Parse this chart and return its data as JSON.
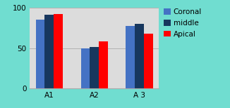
{
  "categories": [
    "A1",
    "A2",
    "A 3"
  ],
  "series": {
    "Coronal": [
      85,
      50,
      77
    ],
    "middle": [
      91,
      51,
      80
    ],
    "Apical": [
      92,
      58,
      68
    ]
  },
  "colors": {
    "Coronal": "#4472c4",
    "middle": "#17375e",
    "Apical": "#ff0000"
  },
  "ylim": [
    0,
    100
  ],
  "yticks": [
    0,
    50,
    100
  ],
  "background_color": "#70ddd0",
  "plot_bg_color": "#dcdcdc",
  "bar_width": 0.2
}
